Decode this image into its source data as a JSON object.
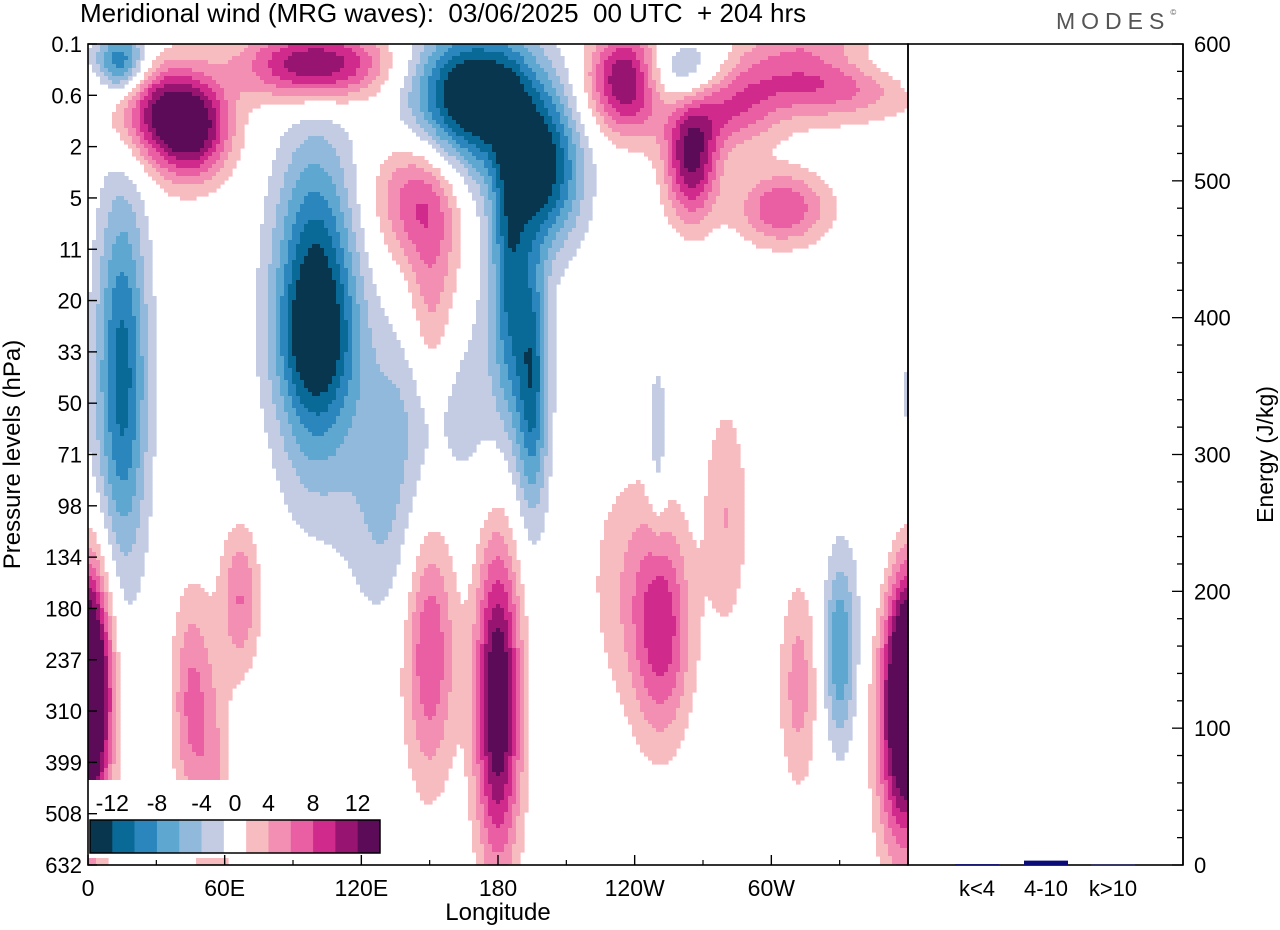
{
  "title": "Meridional wind (MRG waves):  03/06/2025  00 UTC  + 204 hrs",
  "brand": "MODES",
  "brand_mark": "©",
  "chart_data": [
    {
      "type": "heatmap",
      "title": "Meridional wind (MRG waves):  03/06/2025  00 UTC  + 204 hrs",
      "xlabel": "Longitude",
      "ylabel": "Pressure levels (hPa)",
      "x_tick_labels": [
        "0",
        "60E",
        "120E",
        "180",
        "120W",
        "60W"
      ],
      "x_tick_degrees": [
        0,
        60,
        120,
        180,
        240,
        300
      ],
      "xlim": [
        0,
        360
      ],
      "y_tick_labels": [
        "0.1",
        "0.6",
        "2",
        "5",
        "11",
        "20",
        "33",
        "50",
        "71",
        "98",
        "134",
        "180",
        "237",
        "310",
        "399",
        "508",
        "632"
      ],
      "colorbar": {
        "tick_labels": [
          "-12",
          "-8",
          "-4",
          "0",
          "4",
          "8",
          "12"
        ],
        "bins": [
          -14,
          -12,
          -10,
          -8,
          -6,
          -4,
          -2,
          2,
          4,
          6,
          8,
          10,
          12,
          14
        ],
        "colors": [
          "#07364e",
          "#0a6a97",
          "#2a86bd",
          "#5ea7d0",
          "#91b9db",
          "#c3cce3",
          "#ffffff",
          "#f6bcc0",
          "#f28fb3",
          "#ea5ea4",
          "#cf2a8c",
          "#971470",
          "#5b0b58"
        ],
        "placement": "bottom-left"
      },
      "features": [
        {
          "lon": 100,
          "level": 5.2,
          "value": -14,
          "sx": 13,
          "sy": 2.2
        },
        {
          "lon": 15,
          "level": 6.5,
          "value": -11,
          "sx": 8,
          "sy": 2.6
        },
        {
          "lon": 195,
          "level": 6.6,
          "value": -10,
          "sx": 5,
          "sy": 1.8
        },
        {
          "lon": 185,
          "level": 4.5,
          "value": -7,
          "sx": 5,
          "sy": 2.0
        },
        {
          "lon": 170,
          "level": 4.8,
          "value": -5,
          "sx": 18,
          "sy": 2.5
        },
        {
          "lon": 250,
          "level": 7.8,
          "value": -4,
          "sx": 3,
          "sy": 1.2
        },
        {
          "lon": 330,
          "level": 11.8,
          "value": -8,
          "sx": 5,
          "sy": 1.3
        },
        {
          "lon": 130,
          "level": 9.2,
          "value": -4,
          "sx": 12,
          "sy": 1.5
        },
        {
          "lon": 350,
          "level": 10.0,
          "value": -3,
          "sx": 8,
          "sy": 2.5
        },
        {
          "lon": 180,
          "level": 12.8,
          "value": 15,
          "sx": 7,
          "sy": 2.2
        },
        {
          "lon": 357,
          "level": 12.8,
          "value": 15,
          "sx": 8,
          "sy": 2.0
        },
        {
          "lon": 2,
          "level": 12.5,
          "value": 10,
          "sx": 6,
          "sy": 1.5
        },
        {
          "lon": 150,
          "level": 11.8,
          "value": 8,
          "sx": 8,
          "sy": 1.8
        },
        {
          "lon": 252,
          "level": 11.4,
          "value": 9,
          "sx": 9,
          "sy": 1.5
        },
        {
          "lon": 45,
          "level": 12.8,
          "value": 6,
          "sx": 6,
          "sy": 1.5
        },
        {
          "lon": 67,
          "level": 10.8,
          "value": 6,
          "sx": 6,
          "sy": 1.0
        },
        {
          "lon": 312,
          "level": 12.5,
          "value": 5,
          "sx": 6,
          "sy": 1.4
        },
        {
          "lon": 235,
          "level": 10.5,
          "value": 3,
          "sx": 12,
          "sy": 1.7
        },
        {
          "lon": 280,
          "level": 9.2,
          "value": 4,
          "sx": 7,
          "sy": 1.6
        },
        {
          "lon": 55,
          "level": 14.5,
          "value": 4,
          "sx": 6,
          "sy": 2.0
        },
        {
          "lon": 150,
          "level": 5.5,
          "value": 4,
          "sx": 7,
          "sy": 1.5
        },
        {
          "lon": 45,
          "level": 1.6,
          "value": 15,
          "sx": 12,
          "sy": 0.7
        },
        {
          "lon": 25,
          "level": 1.2,
          "value": 8,
          "sx": 12,
          "sy": 0.7
        },
        {
          "lon": 100,
          "level": 0.4,
          "value": 13,
          "sx": 22,
          "sy": 0.5
        },
        {
          "lon": 237,
          "level": 0.7,
          "value": 14,
          "sx": 12,
          "sy": 0.7
        },
        {
          "lon": 325,
          "level": 0.4,
          "value": 15,
          "sx": 25,
          "sy": 0.6
        },
        {
          "lon": 280,
          "level": 1.2,
          "value": 8,
          "sx": 16,
          "sy": 0.6
        },
        {
          "lon": 265,
          "level": 2.3,
          "value": 12,
          "sx": 8,
          "sy": 0.8
        },
        {
          "lon": 145,
          "level": 3.0,
          "value": 8,
          "sx": 14,
          "sy": 0.9
        },
        {
          "lon": 160,
          "level": 4.6,
          "value": 5,
          "sx": 12,
          "sy": 1.3
        },
        {
          "lon": 305,
          "level": 3.2,
          "value": 8,
          "sx": 14,
          "sy": 0.5
        },
        {
          "lon": 170,
          "level": 1.0,
          "value": -15,
          "sx": 20,
          "sy": 0.9
        },
        {
          "lon": 200,
          "level": 2.5,
          "value": -12,
          "sx": 12,
          "sy": 1.0
        },
        {
          "lon": 260,
          "level": 0.6,
          "value": -8,
          "sx": 15,
          "sy": 0.5
        },
        {
          "lon": 335,
          "level": 0.3,
          "value": -10,
          "sx": 25,
          "sy": 0.4
        },
        {
          "lon": 15,
          "level": 0.4,
          "value": -10,
          "sx": 8,
          "sy": 0.5
        },
        {
          "lon": 140,
          "level": 7.0,
          "value": -3,
          "sx": 15,
          "sy": 1.2
        },
        {
          "lon": 100,
          "level": 5.8,
          "value": -3,
          "sx": 12,
          "sy": 0.8
        }
      ]
    },
    {
      "type": "bar",
      "categories": [
        "k<4",
        "4-10",
        "k>10"
      ],
      "values": [
        0.6,
        3.2,
        0.3
      ],
      "bar_color": "#0b0b7a",
      "ylabel": "Energy (J/kg)",
      "ylim": [
        0,
        600
      ],
      "y_tick_labels": [
        "0",
        "100",
        "200",
        "300",
        "400",
        "500",
        "600"
      ]
    }
  ]
}
